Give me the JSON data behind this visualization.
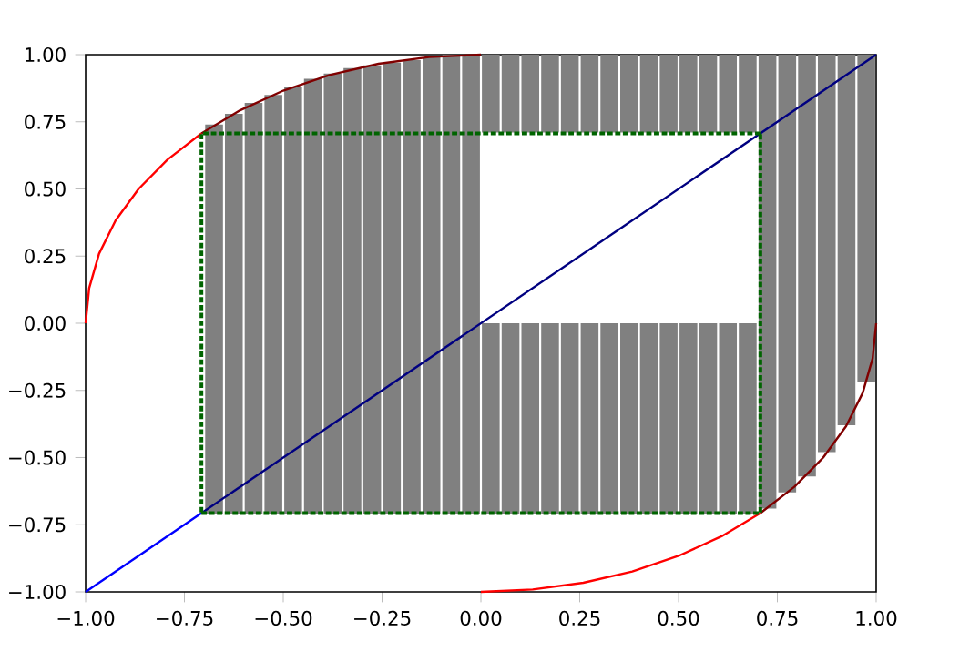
{
  "chart_data": {
    "type": "line",
    "xlim": [
      -1,
      1
    ],
    "ylim": [
      -1,
      1
    ],
    "xticks": [
      {
        "value": -1,
        "label": "−1.00"
      },
      {
        "value": -0.75,
        "label": "−0.75"
      },
      {
        "value": -0.5,
        "label": "−0.50"
      },
      {
        "value": -0.25,
        "label": "−0.25"
      },
      {
        "value": 0,
        "label": "0.00"
      },
      {
        "value": 0.25,
        "label": "0.25"
      },
      {
        "value": 0.5,
        "label": "0.50"
      },
      {
        "value": 0.75,
        "label": "0.75"
      },
      {
        "value": 1,
        "label": "1.00"
      }
    ],
    "yticks": [
      {
        "value": -1,
        "label": "−1.00"
      },
      {
        "value": -0.75,
        "label": "−0.75"
      },
      {
        "value": -0.5,
        "label": "−0.50"
      },
      {
        "value": -0.25,
        "label": "−0.25"
      },
      {
        "value": 0,
        "label": "0.00"
      },
      {
        "value": 0.25,
        "label": "0.25"
      },
      {
        "value": 0.5,
        "label": "0.50"
      },
      {
        "value": 0.75,
        "label": "0.75"
      },
      {
        "value": 1,
        "label": "1.00"
      }
    ],
    "series": [
      {
        "type": "bar",
        "color": "#808080",
        "x": [
          -0.675,
          -0.625,
          -0.575,
          -0.525,
          -0.475,
          -0.425,
          -0.375,
          -0.325,
          -0.275,
          -0.225,
          -0.175,
          -0.125,
          -0.075,
          -0.025
        ],
        "base": [
          -0.71,
          -0.71,
          -0.71,
          -0.71,
          -0.71,
          -0.71,
          -0.71,
          -0.71,
          -0.71,
          -0.71,
          -0.71,
          -0.71,
          -0.71,
          -0.71
        ],
        "values": [
          1.45,
          1.49,
          1.53,
          1.56,
          1.59,
          1.62,
          1.64,
          1.66,
          1.67,
          1.68,
          1.69,
          1.7,
          1.71,
          1.71
        ]
      },
      {
        "type": "bar",
        "color": "#808080",
        "x": [
          0.025,
          0.075,
          0.125,
          0.175,
          0.225,
          0.275,
          0.325,
          0.375,
          0.425,
          0.475,
          0.525,
          0.575,
          0.625,
          0.675
        ],
        "base": [
          -0.71,
          -0.71,
          -0.71,
          -0.71,
          -0.71,
          -0.71,
          -0.71,
          -0.71,
          -0.71,
          -0.71,
          -0.71,
          -0.71,
          -0.71,
          -0.71
        ],
        "values": [
          0.71,
          0.71,
          0.71,
          0.71,
          0.71,
          0.71,
          0.71,
          0.71,
          0.71,
          0.71,
          0.71,
          0.71,
          0.71,
          0.71
        ]
      },
      {
        "type": "bar",
        "color": "#808080",
        "x": [
          0.025,
          0.075,
          0.125,
          0.175,
          0.225,
          0.275,
          0.325,
          0.375,
          0.425,
          0.475,
          0.525,
          0.575,
          0.625,
          0.675
        ],
        "base": [
          0.71,
          0.71,
          0.71,
          0.71,
          0.71,
          0.71,
          0.71,
          0.71,
          0.71,
          0.71,
          0.71,
          0.71,
          0.71,
          0.71
        ],
        "values": [
          0.29,
          0.29,
          0.29,
          0.29,
          0.29,
          0.29,
          0.29,
          0.29,
          0.29,
          0.29,
          0.29,
          0.29,
          0.29,
          0.29
        ]
      },
      {
        "type": "bar",
        "color": "#808080",
        "x": [
          0.725,
          0.775,
          0.825,
          0.875,
          0.925,
          0.975
        ],
        "base": [
          -0.69,
          -0.63,
          -0.57,
          -0.48,
          -0.38,
          -0.22
        ],
        "values": [
          1.69,
          1.63,
          1.57,
          1.48,
          1.38,
          1.22
        ]
      },
      {
        "type": "line",
        "color": "#ff0000",
        "x": [
          -1,
          -0.991,
          -0.966,
          -0.924,
          -0.866,
          -0.793,
          -0.707
        ],
        "values": [
          0,
          0.131,
          0.259,
          0.383,
          0.5,
          0.609,
          0.707
        ]
      },
      {
        "type": "line",
        "color": "#800000",
        "x": [
          -0.707,
          -0.609,
          -0.5,
          -0.383,
          -0.259,
          -0.131,
          0
        ],
        "values": [
          0.707,
          0.793,
          0.866,
          0.924,
          0.966,
          0.991,
          1
        ]
      },
      {
        "type": "line",
        "color": "#ff0000",
        "x": [
          0,
          0.131,
          0.259,
          0.383,
          0.5,
          0.609,
          0.707
        ],
        "values": [
          -1,
          -0.991,
          -0.966,
          -0.924,
          -0.866,
          -0.793,
          -0.707
        ]
      },
      {
        "type": "line",
        "color": "#800000",
        "x": [
          0.707,
          0.793,
          0.866,
          0.924,
          0.966,
          0.991,
          1
        ],
        "values": [
          -0.707,
          -0.609,
          -0.5,
          -0.383,
          -0.259,
          -0.131,
          0
        ]
      },
      {
        "type": "line",
        "color": "#0000ff",
        "x": [
          -1,
          -0.707
        ],
        "values": [
          -1,
          -0.707
        ]
      },
      {
        "type": "line",
        "color": "#000080",
        "x": [
          -0.707,
          1
        ],
        "values": [
          -0.707,
          1
        ]
      },
      {
        "color": "#006400",
        "line_style": "dotted",
        "x": [
          -0.707,
          0.707,
          0.707
        ],
        "values": [
          -0.707,
          -0.707,
          0.707
        ]
      },
      {
        "color": "#006400",
        "line_style": "dotted",
        "x": [
          0.707,
          -0.707,
          -0.707
        ],
        "values": [
          0.707,
          0.707,
          -0.707
        ]
      }
    ]
  }
}
